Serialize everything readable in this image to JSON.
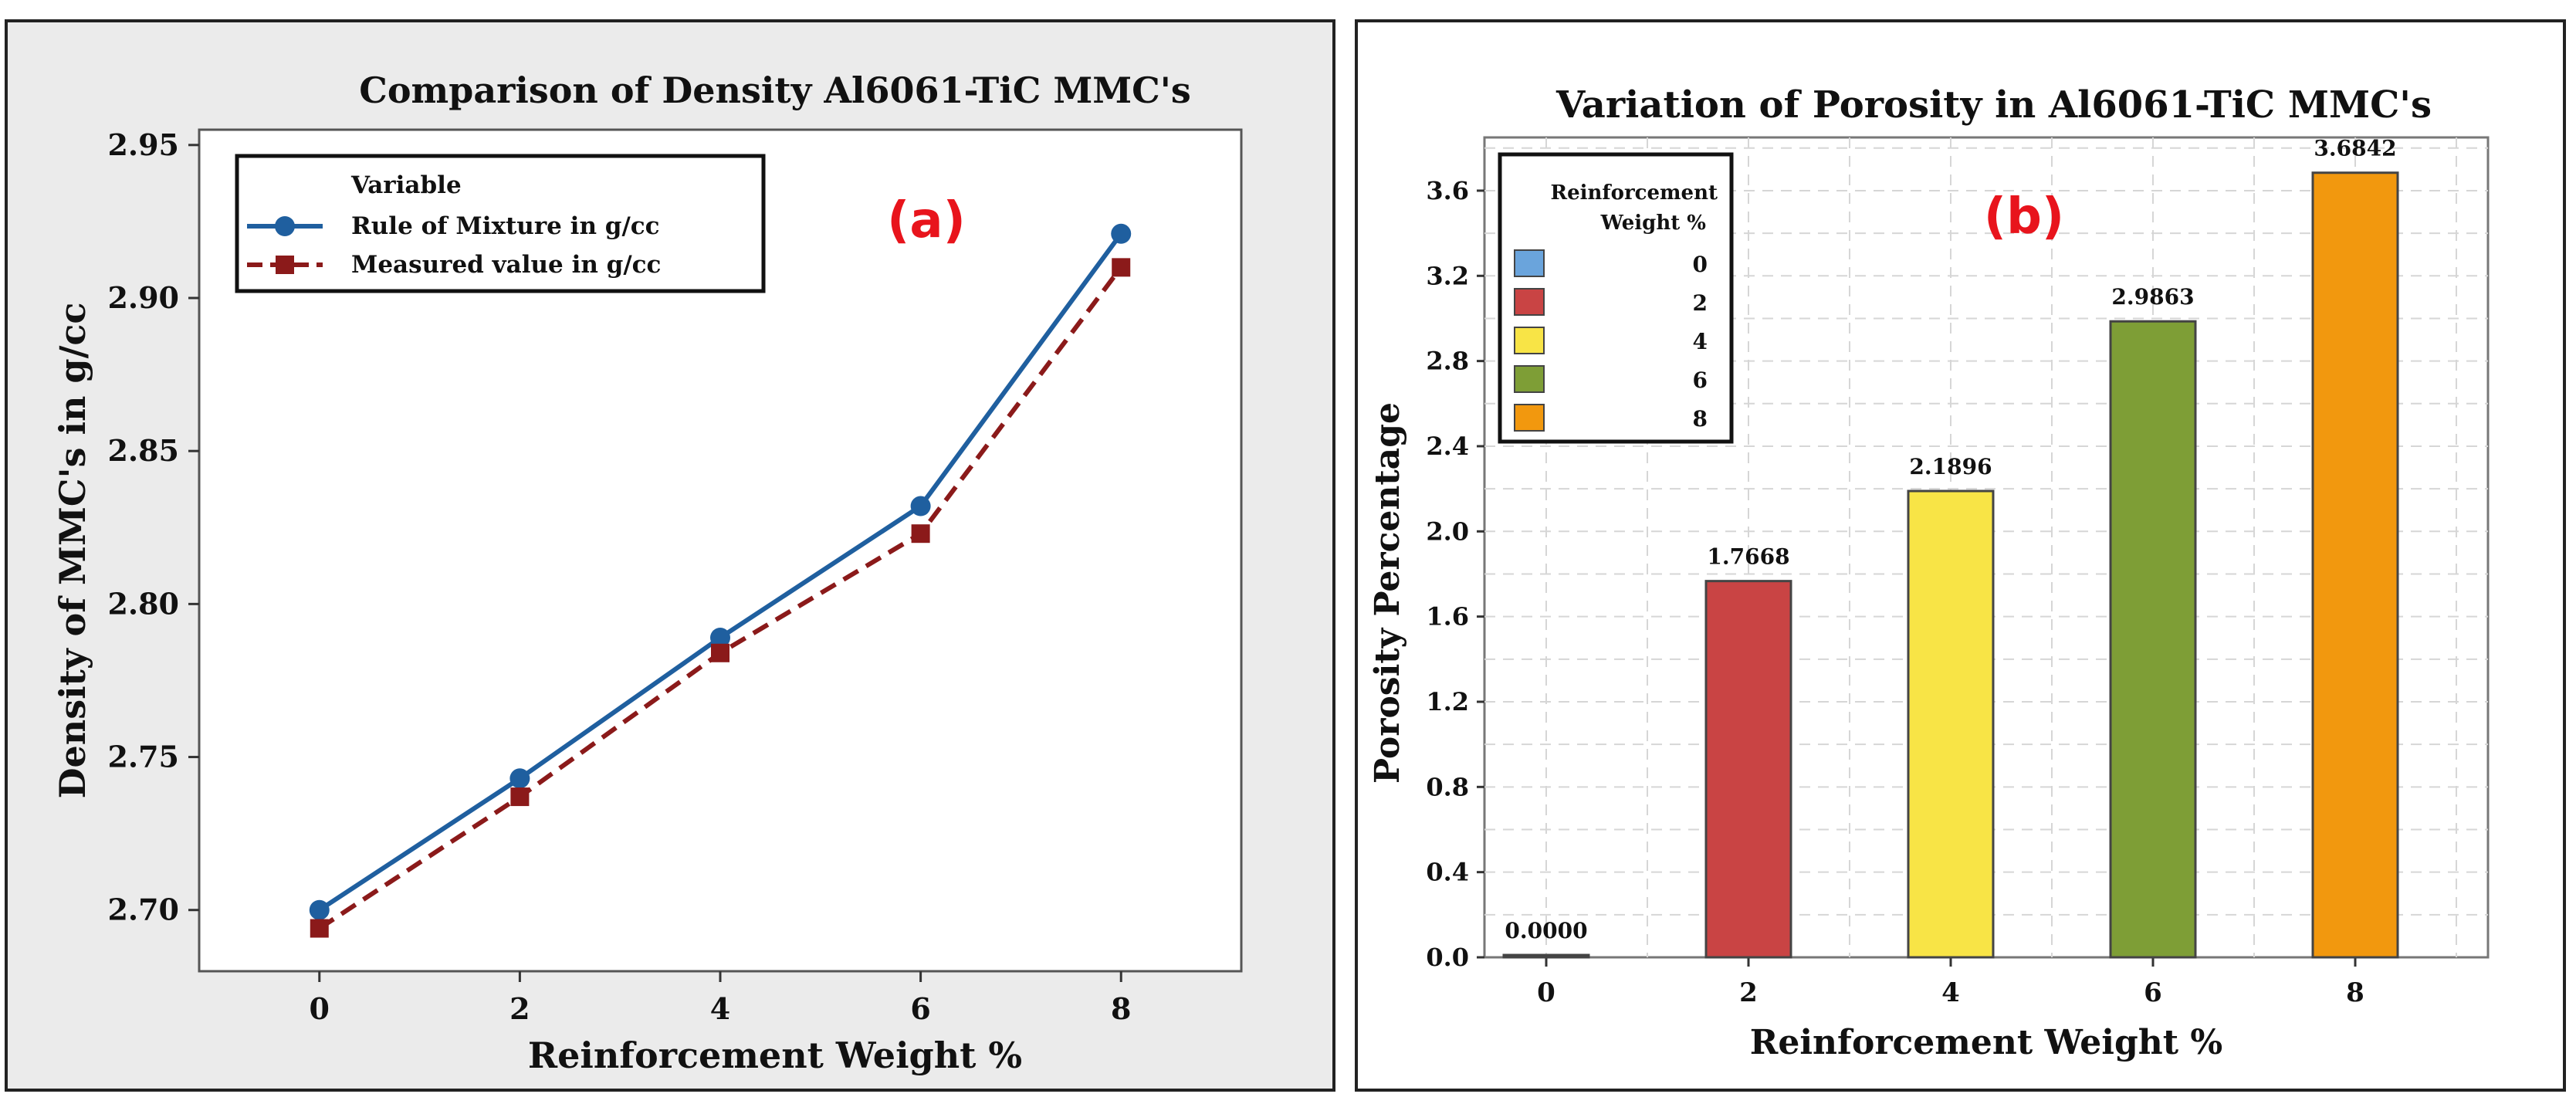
{
  "chart_data": [
    {
      "type": "line",
      "panel_label": "(a)",
      "title": "Comparison of Density Al6061-TiC MMC's",
      "xlabel": "Reinforcement Weight %",
      "ylabel": "Density of MMC's in g/cc",
      "x": [
        0,
        2,
        4,
        6,
        8
      ],
      "xlim": [
        -1.2,
        9.2
      ],
      "ylim": [
        2.68,
        2.955
      ],
      "yticks": [
        2.7,
        2.75,
        2.8,
        2.85,
        2.9,
        2.95
      ],
      "ytick_labels": [
        "2.70",
        "2.75",
        "2.80",
        "2.85",
        "2.90",
        "2.95"
      ],
      "legend_title": "Variable",
      "legend_position": "top-left",
      "series": [
        {
          "name": "Rule of Mixture  in g/cc",
          "values": [
            2.7,
            2.743,
            2.789,
            2.832,
            2.921
          ],
          "color": "#1f5f9f",
          "marker": "circle",
          "line": "solid"
        },
        {
          "name": "Measured value in g/cc",
          "values": [
            2.694,
            2.737,
            2.784,
            2.823,
            2.91
          ],
          "color": "#8b1a1a",
          "marker": "square",
          "line": "dashed"
        }
      ]
    },
    {
      "type": "bar",
      "panel_label": "(b)",
      "title": "Variation of Porosity in Al6061-TiC MMC's",
      "xlabel": "Reinforcement Weight %",
      "ylabel": "Porosity Percentage",
      "categories": [
        "0",
        "2",
        "4",
        "6",
        "8"
      ],
      "values": [
        0.0,
        1.7668,
        2.1896,
        2.9863,
        3.6842
      ],
      "value_labels": [
        "0.0000",
        "1.7668",
        "2.1896",
        "2.9863",
        "3.6842"
      ],
      "colors": [
        "#6aa4dc",
        "#c94444",
        "#f8e446",
        "#7e9e36",
        "#f2980e"
      ],
      "ylim": [
        0,
        3.85
      ],
      "yticks": [
        0.0,
        0.4,
        0.8,
        1.2,
        1.6,
        2.0,
        2.4,
        2.8,
        3.2,
        3.6
      ],
      "ytick_labels": [
        "0.0",
        "0.4",
        "0.8",
        "1.2",
        "1.6",
        "2.0",
        "2.4",
        "2.8",
        "3.2",
        "3.6"
      ],
      "grid": true,
      "legend_title": [
        "Reinforcement",
        "Weight %"
      ],
      "legend_position": "top-left"
    }
  ]
}
